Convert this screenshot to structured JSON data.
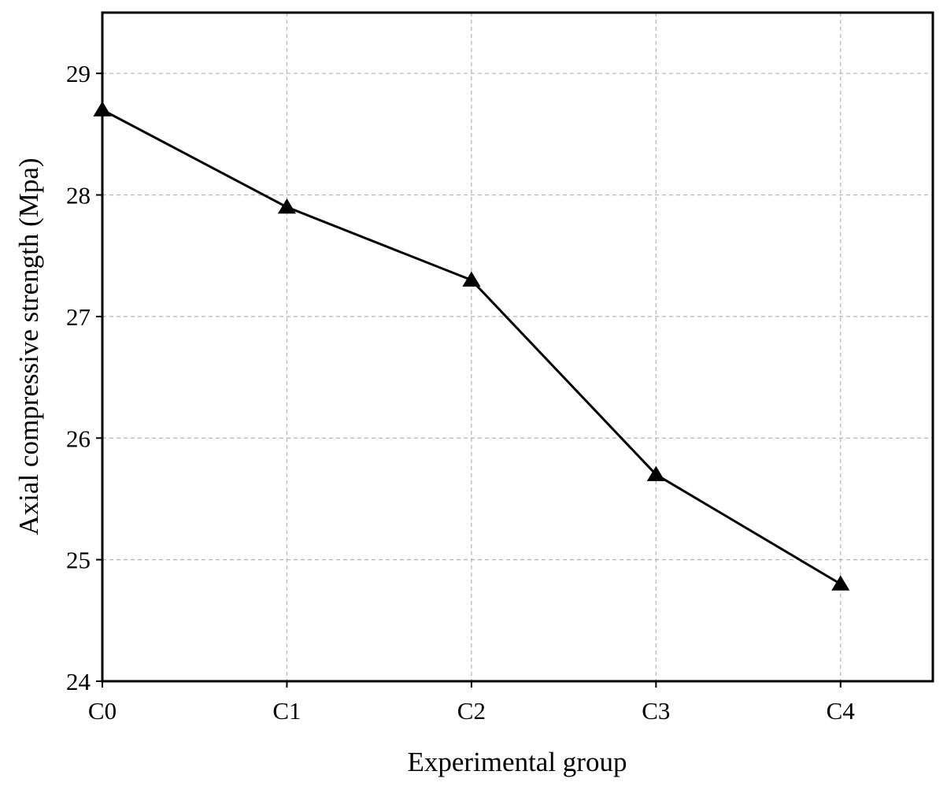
{
  "chart_data": {
    "type": "line",
    "title": "",
    "xlabel": "Experimental group",
    "ylabel": "Axial compressive strength (Mpa)",
    "categories": [
      "C0",
      "C1",
      "C2",
      "C3",
      "C4"
    ],
    "x_range": [
      0,
      4.5
    ],
    "ylim": [
      24,
      29.5
    ],
    "y_ticks": [
      "24",
      "25",
      "26",
      "27",
      "28",
      "29"
    ],
    "grid": true,
    "legend": "none",
    "series": [
      {
        "name": "Axial compressive strength",
        "values": [
          28.7,
          27.9,
          27.3,
          25.7,
          24.8
        ],
        "marker": "triangle-up",
        "color": "#000000"
      }
    ]
  }
}
